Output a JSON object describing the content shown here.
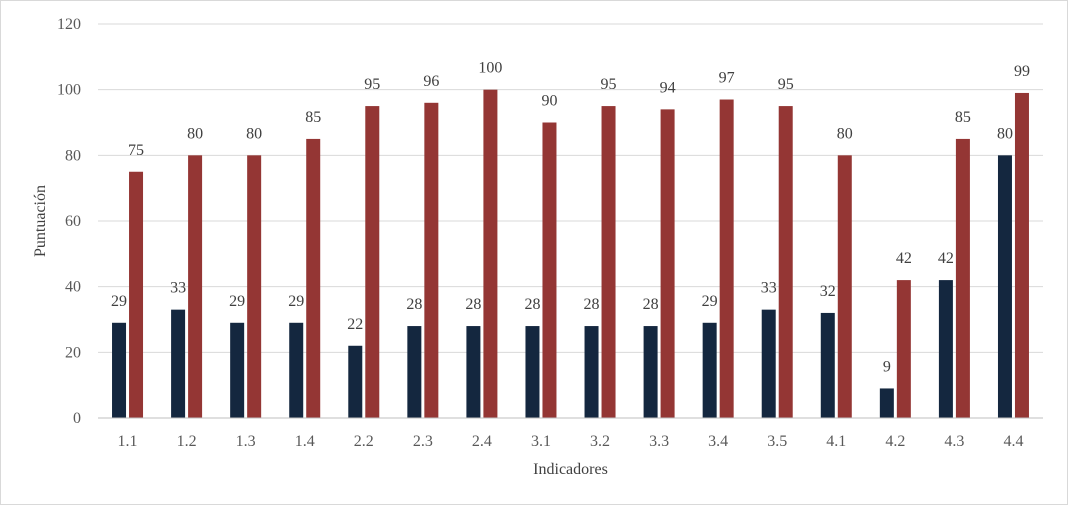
{
  "chart_data": {
    "type": "bar",
    "title": "",
    "xlabel": "Indicadores",
    "ylabel": "Puntuación",
    "ylim": [
      0,
      120
    ],
    "yticks": [
      0,
      20,
      40,
      60,
      80,
      100,
      120
    ],
    "grid": true,
    "legend": "none",
    "categories": [
      "1.1",
      "1.2",
      "1.3",
      "1.4",
      "2.2",
      "2.3",
      "2.4",
      "3.1",
      "3.2",
      "3.3",
      "3.4",
      "3.5",
      "4.1",
      "4.2",
      "4.3",
      "4.4"
    ],
    "series": [
      {
        "color": "#14273f",
        "values": [
          29,
          33,
          29,
          29,
          22,
          28,
          28,
          28,
          28,
          28,
          29,
          33,
          32,
          9,
          42,
          80
        ]
      },
      {
        "color": "#943634",
        "values": [
          75,
          80,
          80,
          85,
          95,
          96,
          100,
          90,
          95,
          94,
          97,
          95,
          80,
          42,
          85,
          99
        ]
      }
    ]
  }
}
